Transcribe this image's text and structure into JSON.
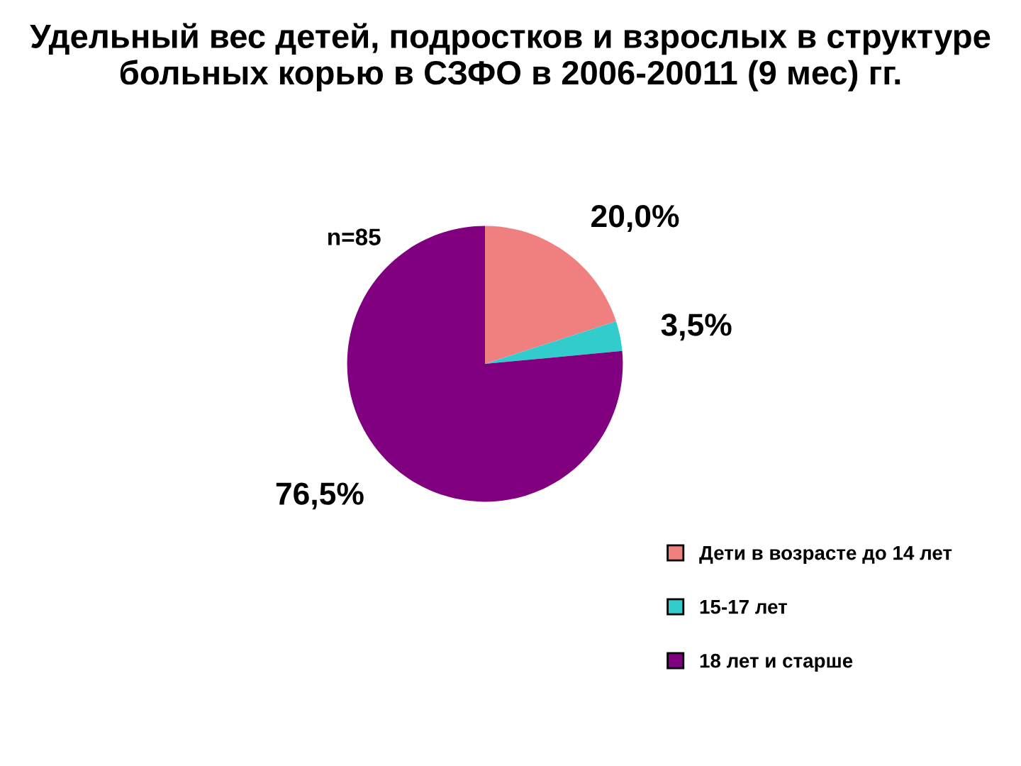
{
  "chart_data": {
    "type": "pie",
    "title": "Удельный вес детей, подростков и взрослых в структуре больных корью в СЗФО в 2006-20011 (9 мес) гг.",
    "categories": [
      "Дети в возрасте до 14 лет",
      "15-17 лет",
      "18 лет и старше"
    ],
    "values": [
      20.0,
      3.5,
      76.5
    ],
    "colors": [
      "#f08080",
      "#33cccc",
      "#800080"
    ],
    "value_labels": [
      "20,0%",
      "3,5%",
      "76,5%"
    ],
    "annotations": [
      "n=85"
    ],
    "legend": "bottom right"
  }
}
